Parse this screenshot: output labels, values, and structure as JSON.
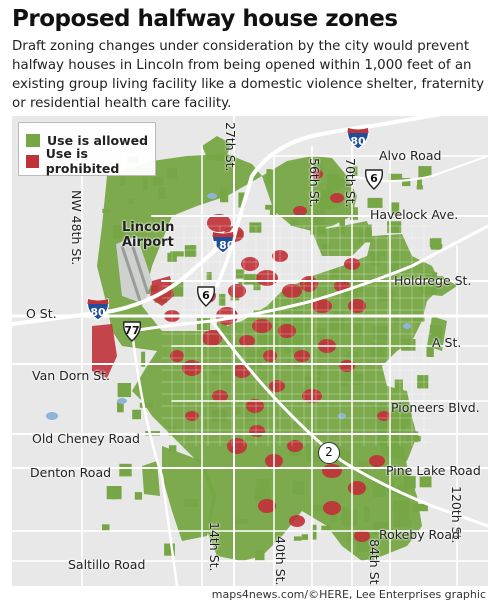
{
  "title": "Proposed halfway house zones",
  "description": "Draft zoning changes under consideration by the city would prevent halfway houses in Lincoln from being opened within 1,000 feet of an existing group living facility like a domestic violence shelter, fraternity or residential health care facility.",
  "legend": {
    "allowed": {
      "label": "Use is allowed",
      "color": "#76a645"
    },
    "prohibited": {
      "label": "Use is prohibited",
      "color": "#c0323a"
    }
  },
  "colors": {
    "map_background": "#e7e8e7",
    "allowed": "#76a645",
    "prohibited": "#c0323a",
    "road": "#ffffff",
    "water": "#8fb4d8"
  },
  "places": {
    "airport": "Lincoln\nAirport",
    "streets": {
      "nw48": "NW 48th St.",
      "s27": "27th St.",
      "s56": "56th St.",
      "s70": "70th St.",
      "alvo": "Alvo Road",
      "havelock": "Havelock Ave.",
      "holdrege": "Holdrege St.",
      "o": "O St.",
      "a": "A St.",
      "vandorn": "Van Dorn St.",
      "pioneers": "Pioneers Blvd.",
      "oldcheney": "Old Cheney Road",
      "denton": "Denton Road",
      "pinelake": "Pine Lake Road",
      "s120": "120th St.",
      "rokeby": "Rokeby Road",
      "saltillo": "Saltillo Road",
      "s14": "14th St.",
      "s40": "40th St.",
      "s84": "84th St."
    }
  },
  "shields": {
    "i80_north": "80",
    "i180": "180",
    "i80_west": "80",
    "us6_east": "6",
    "us6_center": "6",
    "us77": "77",
    "ne2": "2"
  },
  "credit": "maps4news.com/©HERE, Lee Enterprises graphic"
}
